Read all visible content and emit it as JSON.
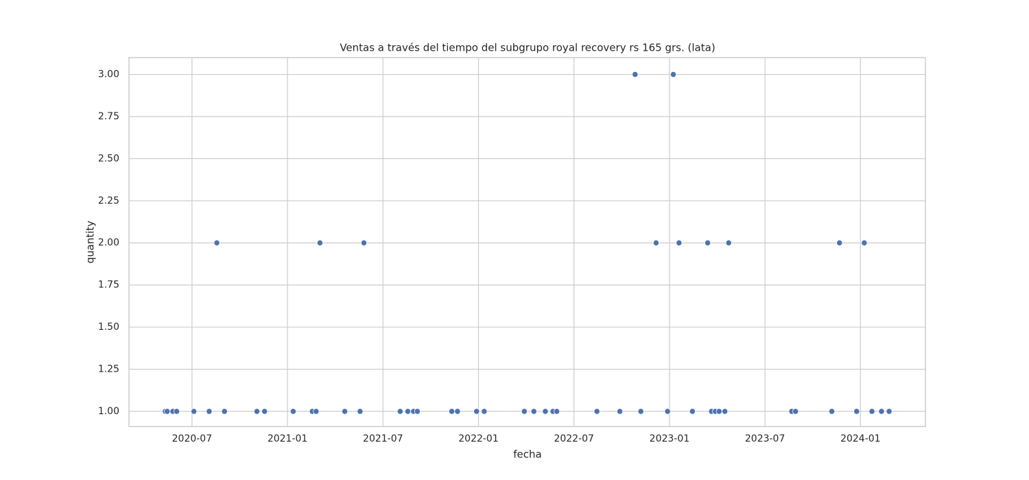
{
  "chart_data": {
    "type": "scatter",
    "title": "Ventas a través del tiempo del subgrupo royal recovery rs 165 grs. (lata)",
    "x_label": "fecha",
    "y_label": "quantity",
    "x": [
      2020.36,
      2020.37,
      2020.4,
      2020.42,
      2020.51,
      2020.59,
      2020.63,
      2020.67,
      2020.84,
      2020.88,
      2021.03,
      2021.13,
      2021.15,
      2021.17,
      2021.3,
      2021.38,
      2021.4,
      2021.59,
      2021.63,
      2021.66,
      2021.68,
      2021.86,
      2021.89,
      2021.99,
      2022.03,
      2022.24,
      2022.29,
      2022.35,
      2022.39,
      2022.41,
      2022.62,
      2022.74,
      2022.82,
      2022.85,
      2022.93,
      2022.99,
      2023.02,
      2023.05,
      2023.12,
      2023.2,
      2023.22,
      2023.24,
      2023.26,
      2023.29,
      2023.31,
      2023.64,
      2023.66,
      2023.85,
      2023.89,
      2023.98,
      2024.02,
      2024.06,
      2024.11,
      2024.15
    ],
    "values": [
      1,
      1,
      1,
      1,
      1,
      1,
      2,
      1,
      1,
      1,
      1,
      1,
      1,
      2,
      1,
      1,
      2,
      1,
      1,
      1,
      1,
      1,
      1,
      1,
      1,
      1,
      1,
      1,
      1,
      1,
      1,
      1,
      3,
      1,
      2,
      1,
      3,
      2,
      1,
      2,
      1,
      1,
      1,
      1,
      2,
      1,
      1,
      1,
      2,
      1,
      2,
      1,
      1,
      1
    ],
    "color": "#4c72b0",
    "xlim": [
      2020.17,
      2024.34
    ],
    "ylim": [
      0.91,
      3.1
    ],
    "xticks": [
      {
        "value": 2020.5,
        "label": "2020-07"
      },
      {
        "value": 2021.0,
        "label": "2021-01"
      },
      {
        "value": 2021.5,
        "label": "2021-07"
      },
      {
        "value": 2022.0,
        "label": "2022-01"
      },
      {
        "value": 2022.5,
        "label": "2022-07"
      },
      {
        "value": 2023.0,
        "label": "2023-01"
      },
      {
        "value": 2023.5,
        "label": "2023-07"
      },
      {
        "value": 2024.0,
        "label": "2024-01"
      }
    ],
    "yticks": [
      {
        "value": 1.0,
        "label": "1.00"
      },
      {
        "value": 1.25,
        "label": "1.25"
      },
      {
        "value": 1.5,
        "label": "1.50"
      },
      {
        "value": 1.75,
        "label": "1.75"
      },
      {
        "value": 2.0,
        "label": "2.00"
      },
      {
        "value": 2.25,
        "label": "2.25"
      },
      {
        "value": 2.5,
        "label": "2.50"
      },
      {
        "value": 2.75,
        "label": "2.75"
      },
      {
        "value": 3.0,
        "label": "3.00"
      }
    ],
    "grid": true
  }
}
